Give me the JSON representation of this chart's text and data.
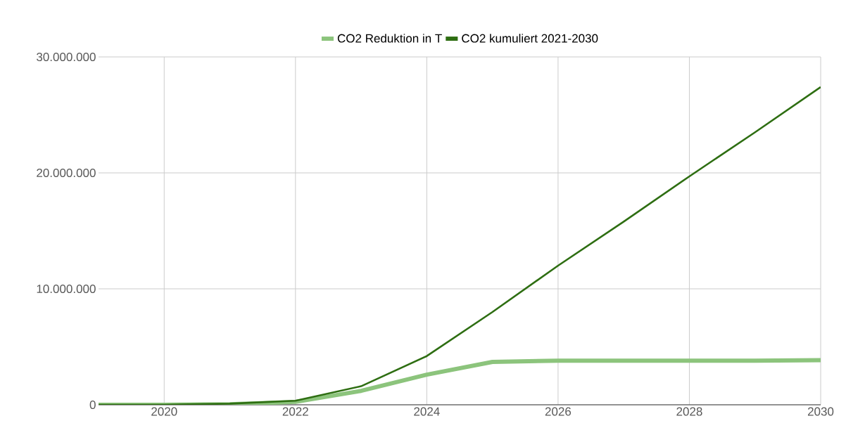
{
  "chart_data": {
    "type": "line",
    "x": [
      2019,
      2020,
      2021,
      2022,
      2023,
      2024,
      2025,
      2026,
      2027,
      2028,
      2029,
      2030
    ],
    "series": [
      {
        "name": "CO2 Reduktion in T",
        "color": "#8cc47c",
        "values": [
          0,
          0,
          50000,
          250000,
          1200000,
          2600000,
          3700000,
          3800000,
          3800000,
          3800000,
          3800000,
          3850000
        ]
      },
      {
        "name": "CO2 kumuliert 2021-2030",
        "color": "#2e6e12",
        "values": [
          0,
          0,
          100000,
          350000,
          1600000,
          4200000,
          8000000,
          12000000,
          15800000,
          19700000,
          23500000,
          27400000
        ]
      }
    ],
    "xlim": [
      2019,
      2030
    ],
    "xticks": [
      2020,
      2022,
      2024,
      2026,
      2028,
      2030
    ],
    "ylim": [
      0,
      30000000
    ],
    "yticks": [
      {
        "value": 0,
        "label": "0"
      },
      {
        "value": 10000000,
        "label": "10.000.000"
      },
      {
        "value": 20000000,
        "label": "20.000.000"
      },
      {
        "value": 30000000,
        "label": "30.000.000"
      }
    ],
    "grid": true,
    "legend": "top",
    "marker": "none",
    "line_style": "solid"
  }
}
